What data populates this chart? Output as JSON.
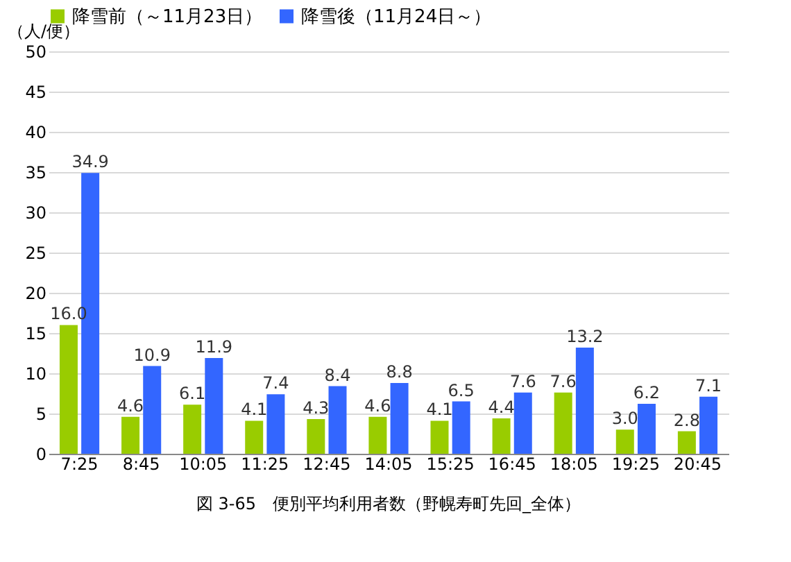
{
  "chart_data": {
    "type": "bar",
    "title": "図 3-65　便別平均利用者数（野幌寿町先回_全体）",
    "ylabel": "（人/便）",
    "categories": [
      "7:25",
      "8:45",
      "10:05",
      "11:25",
      "12:45",
      "14:05",
      "15:25",
      "16:45",
      "18:05",
      "19:25",
      "20:45"
    ],
    "series": [
      {
        "name": "降雪前（～11月23日）",
        "color": "#99cc00",
        "values": [
          16.0,
          4.6,
          6.1,
          4.1,
          4.3,
          4.6,
          4.1,
          4.4,
          7.6,
          3.0,
          2.8
        ],
        "value_labels": [
          "16.0",
          "4.6",
          "6.1",
          "4.1",
          "4.3",
          "4.6",
          "4.1",
          "4.4",
          "7.6",
          "3.0",
          "2.8"
        ]
      },
      {
        "name": "降雪後（11月24日～）",
        "color": "#3366ff",
        "values": [
          34.9,
          10.9,
          11.9,
          7.4,
          8.4,
          8.8,
          6.5,
          7.6,
          13.2,
          6.2,
          7.1
        ],
        "value_labels": [
          "34.9",
          "10.9",
          "11.9",
          "7.4",
          "8.4",
          "8.8",
          "6.5",
          "7.6",
          "13.2",
          "6.2",
          "7.1"
        ]
      }
    ],
    "ylim": [
      0,
      50
    ],
    "yticks": [
      0,
      5,
      10,
      15,
      20,
      25,
      30,
      35,
      40,
      45,
      50
    ],
    "grid": "y",
    "legend": "top"
  }
}
